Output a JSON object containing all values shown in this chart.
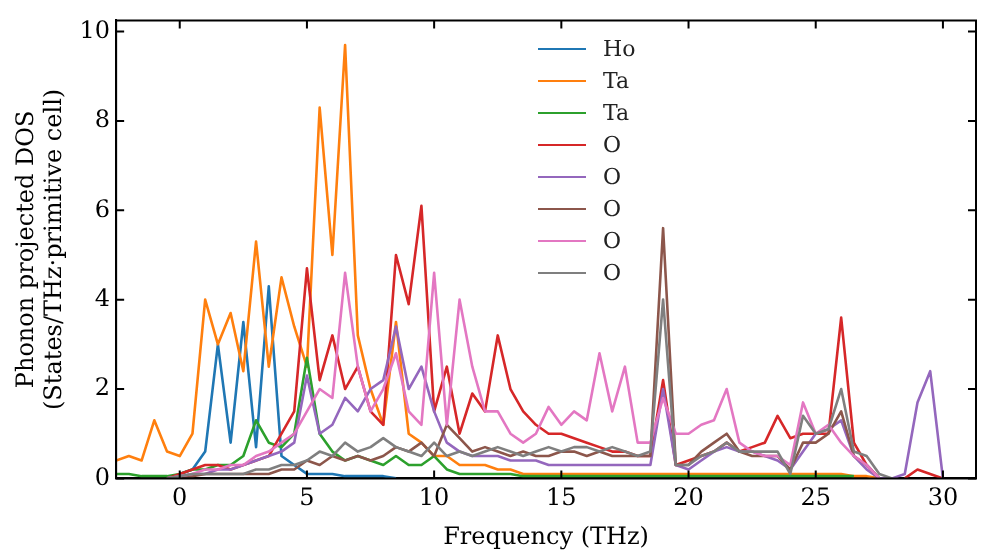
{
  "chart_data": {
    "type": "line",
    "xlabel": "Frequency (THz)",
    "ylabel": "Phonon projected DOS\n(States/THz·primitive cell)",
    "x": [
      -2.5,
      -2,
      -1.5,
      -1,
      -0.5,
      0,
      0.5,
      1,
      1.5,
      2,
      2.5,
      3,
      3.5,
      4,
      4.5,
      5,
      5.5,
      6,
      6.5,
      7,
      7.5,
      8,
      8.5,
      9,
      9.5,
      10,
      10.5,
      11,
      11.5,
      12,
      12.5,
      13,
      13.5,
      14,
      14.5,
      15,
      15.5,
      16,
      16.5,
      17,
      17.5,
      18,
      18.5,
      19,
      19.5,
      20,
      20.5,
      21,
      21.5,
      22,
      22.5,
      23,
      23.5,
      24,
      24.5,
      25,
      25.5,
      26,
      26.5,
      27,
      27.5,
      28,
      28.5,
      29,
      29.5,
      30
    ],
    "series": [
      {
        "name": "Ho",
        "color": "#1f77b4",
        "values": [
          null,
          null,
          null,
          null,
          null,
          0.1,
          0.2,
          0.6,
          3.0,
          0.8,
          3.5,
          0.7,
          4.3,
          0.5,
          0.3,
          0.1,
          0.1,
          0.1,
          0.05,
          0.05,
          0.05,
          0.05,
          0,
          null,
          null,
          null,
          null,
          null,
          null,
          null,
          null,
          null,
          null,
          null,
          null,
          null,
          null,
          null,
          null,
          null,
          null,
          null,
          null,
          null,
          null,
          null,
          null,
          null,
          null,
          null,
          null,
          null,
          null,
          null,
          null,
          null,
          null,
          null,
          null,
          null,
          null,
          null,
          null,
          null,
          null,
          null
        ]
      },
      {
        "name": "Ta",
        "color": "#ff7f0e",
        "values": [
          0.4,
          0.5,
          0.4,
          1.3,
          0.6,
          0.5,
          1.0,
          4.0,
          3.0,
          3.7,
          2.4,
          5.3,
          2.5,
          4.5,
          3.4,
          2.5,
          8.3,
          5.0,
          9.7,
          3.2,
          2.0,
          1.2,
          3.5,
          1.0,
          0.8,
          0.5,
          0.5,
          0.3,
          0.3,
          0.3,
          0.2,
          0.2,
          0.1,
          0.1,
          0.1,
          0.1,
          0.1,
          0.1,
          0.1,
          0.1,
          0.1,
          0.1,
          0.1,
          0.1,
          0.1,
          0.1,
          0.1,
          0.1,
          0.1,
          0.1,
          0.1,
          0.1,
          0.1,
          0.1,
          0.1,
          0.1,
          0.1,
          0.1,
          0.05,
          0.05,
          0,
          null,
          null,
          null,
          null,
          null
        ]
      },
      {
        "name": "Ta",
        "color": "#2ca02c",
        "values": [
          0.1,
          0.1,
          0.05,
          0.05,
          0.05,
          0.1,
          0.2,
          0.2,
          0.3,
          0.3,
          0.5,
          1.3,
          0.8,
          0.7,
          1.0,
          2.7,
          1.0,
          0.6,
          0.4,
          0.5,
          0.4,
          0.3,
          0.5,
          0.3,
          0.3,
          0.5,
          0.2,
          0.1,
          0.1,
          0.1,
          0.1,
          0.1,
          0.05,
          0.05,
          0.05,
          0.05,
          0.05,
          0.05,
          0.05,
          0.05,
          0.05,
          0.05,
          0.05,
          0.05,
          0.05,
          0.05,
          0.05,
          0.05,
          0.05,
          0.05,
          0.05,
          0.05,
          0.05,
          0.05,
          0.05,
          0.05,
          0.05,
          0.05,
          0.05,
          null,
          null,
          null,
          null,
          null,
          null,
          null
        ]
      },
      {
        "name": "O",
        "color": "#d62728",
        "values": [
          null,
          null,
          null,
          null,
          0,
          0.1,
          0.2,
          0.3,
          0.3,
          0.2,
          0.3,
          0.4,
          0.5,
          1.0,
          1.5,
          4.7,
          2.2,
          3.2,
          2.0,
          2.5,
          1.5,
          1.2,
          5.0,
          3.9,
          6.1,
          1.5,
          2.5,
          1.0,
          1.9,
          1.5,
          3.2,
          2.0,
          1.5,
          1.2,
          1.0,
          1.0,
          0.9,
          0.8,
          0.7,
          0.6,
          0.6,
          0.5,
          0.5,
          2.2,
          0.3,
          0.4,
          0.5,
          0.6,
          0.8,
          0.6,
          0.7,
          0.8,
          1.4,
          0.9,
          1.0,
          1.0,
          1.0,
          3.6,
          0.8,
          0.3,
          0,
          null,
          0,
          0.2,
          0.1,
          0
        ]
      },
      {
        "name": "O",
        "color": "#9467bd",
        "values": [
          null,
          null,
          null,
          null,
          0,
          0.05,
          0.1,
          0.1,
          0.2,
          0.2,
          0.3,
          0.4,
          0.5,
          0.6,
          0.8,
          2.3,
          1.0,
          1.2,
          1.8,
          1.5,
          2.0,
          2.2,
          3.4,
          2.0,
          2.5,
          1.5,
          0.8,
          0.6,
          0.5,
          0.5,
          0.5,
          0.4,
          0.4,
          0.4,
          0.3,
          0.3,
          0.3,
          0.3,
          0.3,
          0.3,
          0.3,
          0.3,
          0.3,
          2.0,
          0.3,
          0.2,
          0.4,
          0.6,
          0.7,
          0.6,
          0.6,
          0.5,
          0.4,
          0.2,
          0.6,
          1.0,
          1.1,
          1.3,
          0.5,
          0.2,
          0,
          0,
          0.1,
          1.7,
          2.4,
          0
        ]
      },
      {
        "name": "O",
        "color": "#8c564b",
        "values": [
          null,
          null,
          null,
          null,
          0,
          0.05,
          0.05,
          0.1,
          0.1,
          0.1,
          0.1,
          0.1,
          0.1,
          0.2,
          0.2,
          0.4,
          0.3,
          0.5,
          0.4,
          0.5,
          0.4,
          0.5,
          0.7,
          0.6,
          0.8,
          0.5,
          1.2,
          0.9,
          0.6,
          0.7,
          0.6,
          0.5,
          0.6,
          0.5,
          0.5,
          0.6,
          0.6,
          0.5,
          0.6,
          0.5,
          0.5,
          0.5,
          0.5,
          5.6,
          0.3,
          0.3,
          0.6,
          0.8,
          1.0,
          0.6,
          0.5,
          0.5,
          0.5,
          0.2,
          0.8,
          0.8,
          1.0,
          1.5,
          0.5,
          0.3,
          0,
          null,
          null,
          null,
          null,
          null
        ]
      },
      {
        "name": "O",
        "color": "#e377c2",
        "values": [
          null,
          null,
          null,
          null,
          0,
          0.05,
          0.1,
          0.2,
          0.2,
          0.3,
          0.3,
          0.5,
          0.6,
          0.8,
          1.0,
          1.5,
          2.0,
          1.8,
          4.6,
          2.5,
          1.5,
          2.0,
          2.8,
          1.5,
          1.2,
          4.6,
          1.2,
          4.0,
          2.5,
          1.5,
          1.5,
          1.0,
          0.8,
          1.0,
          1.6,
          1.2,
          1.5,
          1.3,
          2.8,
          1.5,
          2.5,
          0.8,
          0.8,
          1.8,
          1.0,
          1.0,
          1.2,
          1.3,
          2.0,
          0.8,
          0.6,
          0.5,
          0.5,
          0.3,
          1.7,
          1.0,
          1.2,
          0.8,
          0.5,
          0.3,
          0,
          null,
          null,
          null,
          null,
          null
        ]
      },
      {
        "name": "O",
        "color": "#7f7f7f",
        "values": [
          null,
          null,
          null,
          null,
          0,
          0.05,
          0.1,
          0.1,
          0.1,
          0.1,
          0.1,
          0.2,
          0.2,
          0.3,
          0.3,
          0.4,
          0.6,
          0.5,
          0.8,
          0.6,
          0.7,
          0.9,
          0.7,
          0.6,
          0.5,
          0.8,
          0.5,
          0.6,
          0.5,
          0.6,
          0.7,
          0.6,
          0.5,
          0.6,
          0.7,
          0.6,
          0.7,
          0.7,
          0.6,
          0.7,
          0.6,
          0.5,
          0.6,
          4.0,
          0.3,
          0.3,
          0.5,
          0.6,
          0.8,
          0.6,
          0.6,
          0.6,
          0.6,
          0.1,
          1.4,
          1.0,
          1.1,
          2.0,
          0.6,
          0.5,
          0.1,
          0,
          null,
          null,
          null,
          null
        ]
      }
    ],
    "xlim": [
      -2.5,
      31.3
    ],
    "xticks": [
      0,
      5,
      10,
      15,
      20,
      25,
      30
    ],
    "ylim": [
      0,
      10.25
    ],
    "yticks": [
      0,
      2,
      4,
      6,
      8,
      10
    ],
    "legend": "top",
    "marker": "none",
    "line_style": "solid",
    "grid": false
  }
}
